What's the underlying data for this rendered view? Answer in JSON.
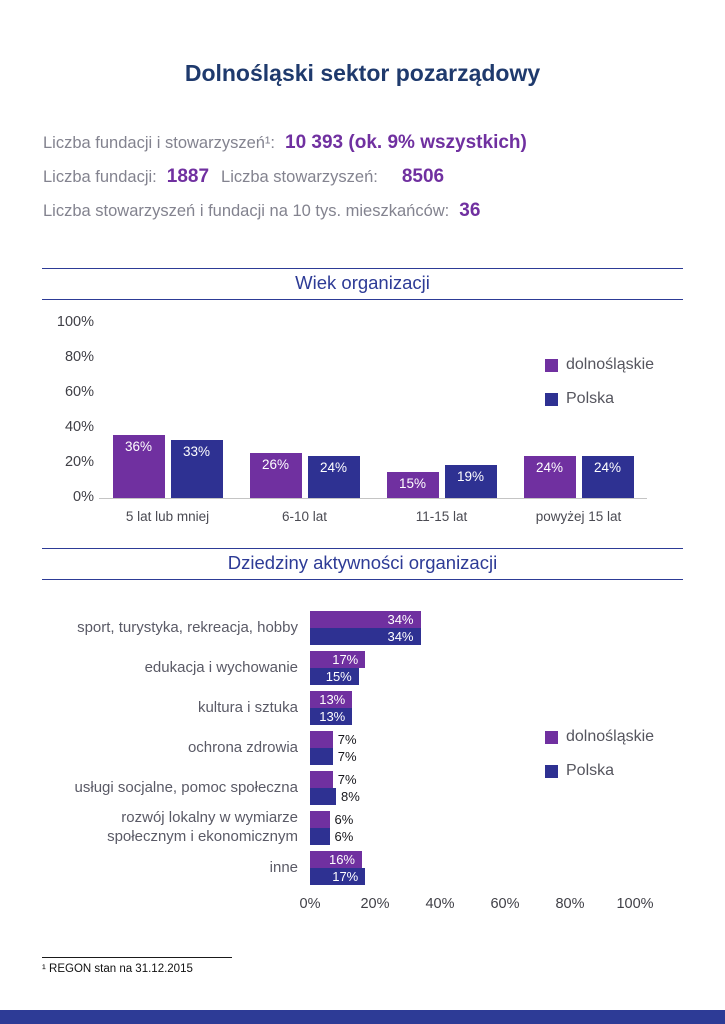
{
  "title": "Dolnośląski sektor pozarządowy",
  "stats": {
    "total_label": "Liczba fundacji i stowarzyszeń¹:",
    "total_value": "10 393 (ok. 9% wszystkich)",
    "foundations_label": "Liczba fundacji:",
    "foundations_value": "1887",
    "associations_label": "Liczba stowarzyszeń:",
    "associations_value": "8506",
    "per_capita_label": "Liczba stowarzyszeń i fundacji na 10 tys. mieszkańców:",
    "per_capita_value": "36"
  },
  "sections": {
    "age_title": "Wiek organizacji",
    "fields_title": "Dziedziny aktywności organizacji"
  },
  "colors": {
    "purple": "#7030a0",
    "navy": "#2e3192",
    "heading_navy": "#1f3a6d",
    "rule_blue": "#2d3b96"
  },
  "footnote": "¹ REGON stan na 31.12.2015",
  "chart_data": [
    {
      "type": "bar",
      "orientation": "vertical",
      "title": "Wiek organizacji",
      "categories": [
        "5 lat lub mniej",
        "6-10 lat",
        "11-15 lat",
        "powyżej 15 lat"
      ],
      "series": [
        {
          "name": "dolnośląskie",
          "color": "#7030a0",
          "values": [
            36,
            26,
            15,
            24
          ]
        },
        {
          "name": "Polska",
          "color": "#2e3192",
          "values": [
            33,
            24,
            19,
            24
          ]
        }
      ],
      "ylim": [
        0,
        100
      ],
      "yticks": [
        0,
        20,
        40,
        60,
        80,
        100
      ],
      "value_label_format": "percent",
      "grid": false,
      "legend_position": "right"
    },
    {
      "type": "bar",
      "orientation": "horizontal",
      "title": "Dziedziny aktywności organizacji",
      "categories": [
        "sport, turystyka, rekreacja, hobby",
        "edukacja i wychowanie",
        "kultura i sztuka",
        "ochrona zdrowia",
        "usługi socjalne, pomoc społeczna",
        "rozwój lokalny w wymiarze\nspołecznym i ekonomicznym",
        "inne"
      ],
      "series": [
        {
          "name": "dolnośląskie",
          "color": "#7030a0",
          "values": [
            34,
            17,
            13,
            7,
            7,
            6,
            16
          ]
        },
        {
          "name": "Polska",
          "color": "#2e3192",
          "values": [
            34,
            15,
            13,
            7,
            8,
            6,
            17
          ]
        }
      ],
      "xlim": [
        0,
        100
      ],
      "xticks": [
        0,
        20,
        40,
        60,
        80,
        100
      ],
      "value_label_format": "percent",
      "grid": false,
      "legend_position": "right"
    }
  ]
}
